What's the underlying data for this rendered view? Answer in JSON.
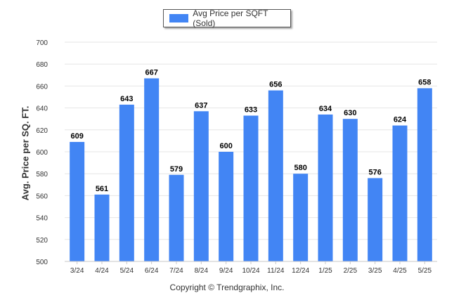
{
  "chart_data": {
    "type": "bar",
    "title": "",
    "xlabel": "",
    "ylabel": "Avg. Price per SQ. FT.",
    "ylim": [
      500,
      700
    ],
    "yticks": [
      500,
      520,
      540,
      560,
      580,
      600,
      620,
      640,
      660,
      680,
      700
    ],
    "grid": true,
    "legend_position": "top-center",
    "categories": [
      "3/24",
      "4/24",
      "5/24",
      "6/24",
      "7/24",
      "8/24",
      "9/24",
      "10/24",
      "11/24",
      "12/24",
      "1/25",
      "2/25",
      "3/25",
      "4/25",
      "5/25"
    ],
    "series": [
      {
        "name": "Avg Price per SQFT (Sold)",
        "color": "#4285f4",
        "values": [
          609,
          561,
          643,
          667,
          579,
          637,
          600,
          633,
          656,
          580,
          634,
          630,
          576,
          624,
          658
        ]
      }
    ]
  },
  "footer": {
    "copyright": "Copyright © Trendgraphix, Inc."
  }
}
